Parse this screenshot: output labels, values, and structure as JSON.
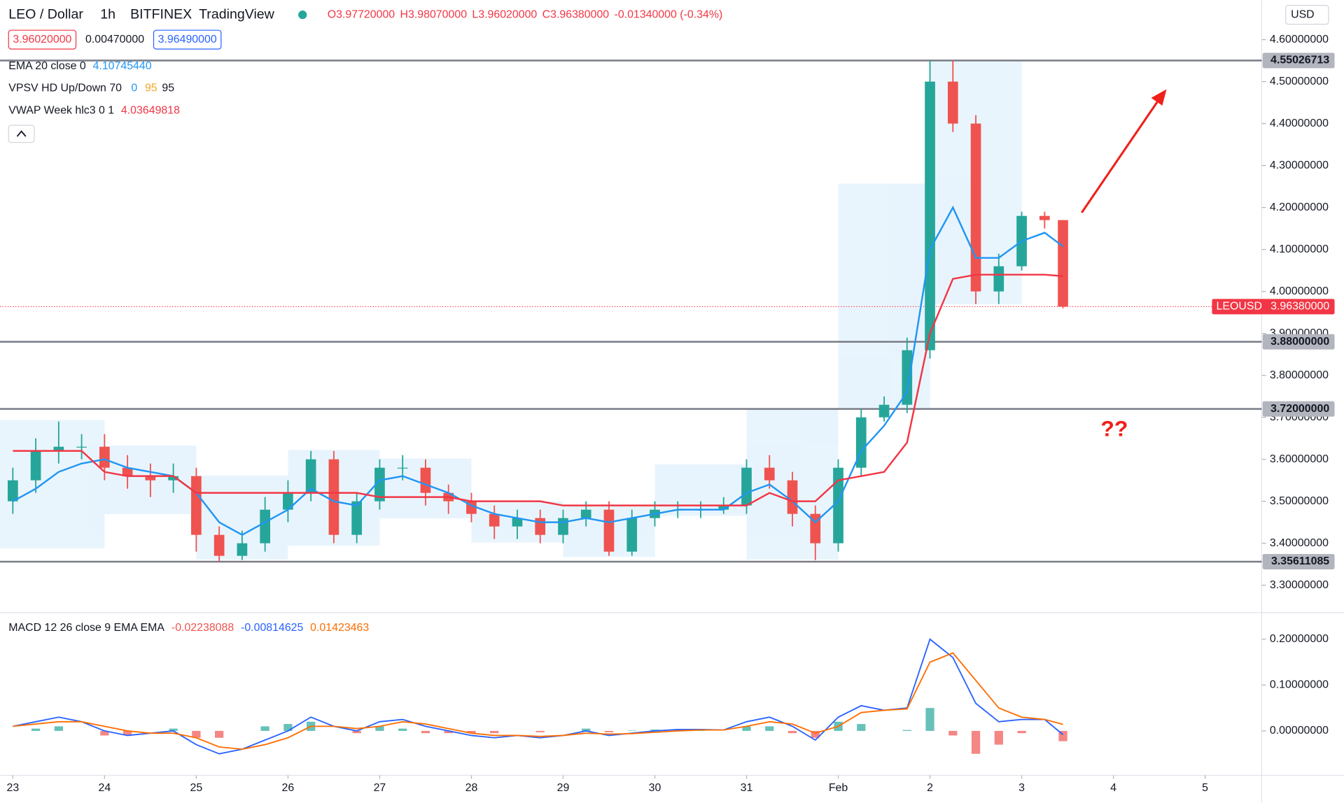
{
  "chart_data": {
    "type": "candlestick",
    "title": "LEO / Dollar",
    "interval": "1h",
    "exchange": "BITFINEX",
    "brand": "TradingView",
    "ohlc_labels": [
      "O3.97720000",
      "H3.98070000",
      "L3.96020000",
      "C3.96380000",
      "-0.01340000 (-0.34%)"
    ],
    "quotes": [
      "3.96020000",
      "0.00470000",
      "3.96490000"
    ],
    "currency": "USD",
    "vpsv": {
      "name": "VPSV HD Up/Down 70",
      "params": [
        "0",
        "95",
        "95"
      ]
    },
    "x": [
      0,
      0.25,
      0.5,
      0.75,
      1,
      1.25,
      1.5,
      1.75,
      2,
      2.25,
      2.5,
      2.75,
      3,
      3.25,
      3.5,
      3.75,
      4,
      4.25,
      4.5,
      4.75,
      5,
      5.25,
      5.5,
      5.75,
      6,
      6.25,
      6.5,
      6.75,
      7,
      7.25,
      7.5,
      7.75,
      8,
      8.25,
      8.5,
      8.75,
      9,
      9.25,
      9.5,
      9.75,
      10,
      10.25,
      10.5,
      10.75,
      11,
      11.25,
      11.45
    ],
    "xlim": [
      -0.14,
      13.617
    ],
    "xticks": [
      {
        "value": 0,
        "label": "23"
      },
      {
        "value": 1,
        "label": "24"
      },
      {
        "value": 2,
        "label": "25"
      },
      {
        "value": 3,
        "label": "26"
      },
      {
        "value": 4,
        "label": "27"
      },
      {
        "value": 5,
        "label": "28"
      },
      {
        "value": 6,
        "label": "29"
      },
      {
        "value": 7,
        "label": "30"
      },
      {
        "value": 8,
        "label": "31"
      },
      {
        "value": 9,
        "label": "Feb"
      },
      {
        "value": 10,
        "label": "2"
      },
      {
        "value": 11,
        "label": "3"
      },
      {
        "value": 12,
        "label": "4"
      },
      {
        "value": 13,
        "label": "5"
      }
    ],
    "ylim": [
      3.2347,
      4.6939
    ],
    "yticks": [
      {
        "value": 4.6,
        "label": "4.60000000"
      },
      {
        "value": 4.5,
        "label": "4.50000000"
      },
      {
        "value": 4.4,
        "label": "4.40000000"
      },
      {
        "value": 4.3,
        "label": "4.30000000"
      },
      {
        "value": 4.2,
        "label": "4.20000000"
      },
      {
        "value": 4.1,
        "label": "4.10000000"
      },
      {
        "value": 4.0,
        "label": "4.00000000"
      },
      {
        "value": 3.9,
        "label": "3.90000000"
      },
      {
        "value": 3.8,
        "label": "3.80000000"
      },
      {
        "value": 3.7,
        "label": "3.70000000"
      },
      {
        "value": 3.6,
        "label": "3.60000000"
      },
      {
        "value": 3.5,
        "label": "3.50000000"
      },
      {
        "value": 3.4,
        "label": "3.40000000"
      },
      {
        "value": 3.3,
        "label": "3.30000000"
      }
    ],
    "grid": false,
    "candles": {
      "up_color": "#26a69a",
      "down_color": "#ef5350",
      "open": [
        3.5,
        3.55,
        3.62,
        3.63,
        3.63,
        3.58,
        3.56,
        3.55,
        3.56,
        3.42,
        3.37,
        3.4,
        3.48,
        3.52,
        3.6,
        3.42,
        3.5,
        3.58,
        3.58,
        3.52,
        3.5,
        3.47,
        3.44,
        3.46,
        3.42,
        3.46,
        3.48,
        3.38,
        3.46,
        3.48,
        3.48,
        3.48,
        3.49,
        3.58,
        3.55,
        3.47,
        3.4,
        3.58,
        3.7,
        3.73,
        3.86,
        4.5,
        4.4,
        4.0,
        4.06,
        4.18,
        4.17
      ],
      "high": [
        3.58,
        3.65,
        3.69,
        3.66,
        3.66,
        3.61,
        3.59,
        3.59,
        3.58,
        3.44,
        3.43,
        3.51,
        3.55,
        3.62,
        3.62,
        3.52,
        3.6,
        3.61,
        3.6,
        3.54,
        3.52,
        3.49,
        3.48,
        3.48,
        3.48,
        3.5,
        3.5,
        3.48,
        3.5,
        3.5,
        3.5,
        3.51,
        3.6,
        3.61,
        3.57,
        3.49,
        3.6,
        3.72,
        3.75,
        3.89,
        4.55,
        4.55,
        4.42,
        4.09,
        4.19,
        4.19,
        4.17
      ],
      "low": [
        3.47,
        3.52,
        3.59,
        3.6,
        3.55,
        3.53,
        3.51,
        3.52,
        3.38,
        3.356,
        3.36,
        3.38,
        3.45,
        3.5,
        3.4,
        3.4,
        3.48,
        3.55,
        3.49,
        3.47,
        3.45,
        3.41,
        3.41,
        3.4,
        3.4,
        3.44,
        3.37,
        3.37,
        3.44,
        3.46,
        3.46,
        3.47,
        3.47,
        3.53,
        3.44,
        3.36,
        3.38,
        3.56,
        3.69,
        3.71,
        3.84,
        4.38,
        3.97,
        3.97,
        4.05,
        4.15,
        3.96
      ],
      "close": [
        3.55,
        3.62,
        3.63,
        3.63,
        3.58,
        3.56,
        3.55,
        3.56,
        3.42,
        3.37,
        3.4,
        3.48,
        3.52,
        3.6,
        3.42,
        3.5,
        3.58,
        3.58,
        3.52,
        3.5,
        3.47,
        3.44,
        3.46,
        3.42,
        3.46,
        3.48,
        3.38,
        3.46,
        3.48,
        3.48,
        3.48,
        3.49,
        3.58,
        3.55,
        3.47,
        3.4,
        3.58,
        3.7,
        3.73,
        3.86,
        4.5,
        4.4,
        4.0,
        4.06,
        4.18,
        4.17,
        3.9638
      ]
    },
    "series": [
      {
        "name": "EMA 20 close 0",
        "color": "#2196f3",
        "last_label": "4.10745440",
        "values": [
          3.5,
          3.53,
          3.57,
          3.59,
          3.6,
          3.58,
          3.57,
          3.56,
          3.52,
          3.45,
          3.42,
          3.45,
          3.48,
          3.53,
          3.5,
          3.49,
          3.55,
          3.56,
          3.54,
          3.52,
          3.49,
          3.47,
          3.46,
          3.45,
          3.45,
          3.46,
          3.45,
          3.46,
          3.47,
          3.48,
          3.48,
          3.48,
          3.52,
          3.54,
          3.5,
          3.45,
          3.5,
          3.62,
          3.68,
          3.76,
          4.1,
          4.2,
          4.08,
          4.08,
          4.12,
          4.14,
          4.1074544
        ]
      },
      {
        "name": "VWAP Week hlc3 0 1",
        "color": "#f23645",
        "last_label": "4.03649818",
        "values": [
          3.62,
          3.62,
          3.62,
          3.62,
          3.57,
          3.56,
          3.56,
          3.56,
          3.52,
          3.52,
          3.52,
          3.52,
          3.52,
          3.52,
          3.52,
          3.52,
          3.51,
          3.51,
          3.51,
          3.51,
          3.5,
          3.5,
          3.5,
          3.5,
          3.49,
          3.49,
          3.49,
          3.49,
          3.49,
          3.49,
          3.49,
          3.49,
          3.49,
          3.52,
          3.5,
          3.5,
          3.55,
          3.56,
          3.57,
          3.64,
          3.9,
          4.03,
          4.04,
          4.04,
          4.04,
          4.04,
          4.03649818
        ]
      }
    ],
    "levels": [
      4.55026713,
      {
        "value": 3.88,
        "label": "3.88000000"
      },
      {
        "value": 3.72,
        "label": "3.72000000"
      },
      3.35611085
    ],
    "level_color": "#787b86",
    "last_price": {
      "symbol": "LEOUSD",
      "value": 3.9638,
      "label": "3.96380000",
      "color": "#f23645"
    },
    "annotation": "??",
    "macd": {
      "label": "MACD 12 26 close 9 EMA EMA",
      "y2lim": [
        -0.097,
        0.258
      ],
      "y2ticks": [
        {
          "value": 0.2,
          "label": "0.20000000"
        },
        {
          "value": 0.1,
          "label": "0.10000000"
        },
        {
          "value": 0,
          "label": "0.00000000"
        }
      ],
      "histogram": {
        "up_color": "#26a69a",
        "down_color": "#ef5350",
        "last_label": "-0.02238088",
        "values": [
          0,
          0.005,
          0.01,
          0,
          -0.01,
          -0.01,
          0,
          0.005,
          -0.015,
          -0.015,
          0,
          0.01,
          0.015,
          0.02,
          0,
          -0.005,
          0.01,
          0.005,
          -0.005,
          -0.005,
          -0.005,
          -0.005,
          0,
          -0.003,
          0,
          0.005,
          -0.003,
          0.001,
          0.003,
          0.003,
          0.001,
          0,
          0.01,
          0.01,
          -0.005,
          -0.015,
          0.02,
          0.015,
          0,
          0.002,
          0.05,
          -0.01,
          -0.05,
          -0.03,
          -0.005,
          0,
          -0.02238088
        ]
      },
      "series": [
        {
          "color": "#2962ff",
          "axis": "y2",
          "last_label": "-0.00814625",
          "values": [
            0.01,
            0.02,
            0.03,
            0.02,
            0,
            -0.01,
            -0.005,
            0,
            -0.03,
            -0.05,
            -0.04,
            -0.02,
            0,
            0.03,
            0.01,
            0,
            0.02,
            0.025,
            0.01,
            0,
            -0.01,
            -0.015,
            -0.01,
            -0.015,
            -0.01,
            0,
            -0.01,
            -0.005,
            0,
            0.003,
            0.003,
            0.002,
            0.02,
            0.03,
            0.01,
            -0.02,
            0.03,
            0.055,
            0.045,
            0.05,
            0.2,
            0.16,
            0.06,
            0.02,
            0.025,
            0.025,
            -0.00814625
          ]
        },
        {
          "color": "#ff6d00",
          "axis": "y2",
          "last_label": "0.01423463",
          "values": [
            0.01,
            0.015,
            0.02,
            0.02,
            0.01,
            0,
            -0.005,
            -0.005,
            -0.015,
            -0.035,
            -0.04,
            -0.03,
            -0.015,
            0.01,
            0.01,
            0.005,
            0.01,
            0.02,
            0.015,
            0.005,
            -0.005,
            -0.01,
            -0.01,
            -0.012,
            -0.01,
            -0.005,
            -0.007,
            -0.006,
            -0.003,
            0,
            0.002,
            0.002,
            0.01,
            0.02,
            0.015,
            -0.005,
            0.01,
            0.04,
            0.045,
            0.048,
            0.15,
            0.17,
            0.11,
            0.05,
            0.03,
            0.025,
            0.01423463
          ]
        }
      ]
    }
  }
}
